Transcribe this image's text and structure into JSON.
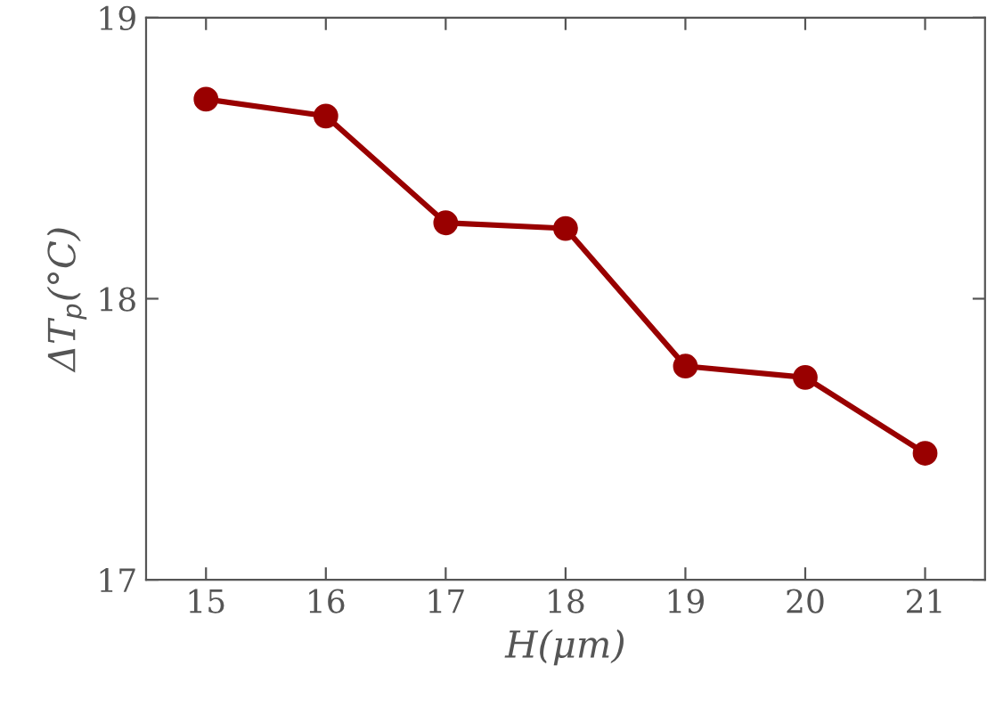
{
  "chart_data": {
    "type": "line",
    "xlabel": "H(μm)",
    "ylabel": "ΔT$_{p}$(°C)",
    "x": [
      15,
      16,
      17,
      18,
      19,
      20,
      21
    ],
    "series": [
      {
        "color": "#990000",
        "values": [
          18.71,
          18.65,
          18.27,
          18.25,
          17.76,
          17.72,
          17.45
        ]
      }
    ],
    "xlim": [
      14.5,
      21.5
    ],
    "xticks": [
      15,
      16,
      17,
      18,
      19,
      20,
      21
    ],
    "ylim": [
      17,
      19
    ],
    "yticks": [
      17,
      18,
      19
    ],
    "marker": "circle",
    "line_style": "solid",
    "grid": false,
    "legend": false
  }
}
